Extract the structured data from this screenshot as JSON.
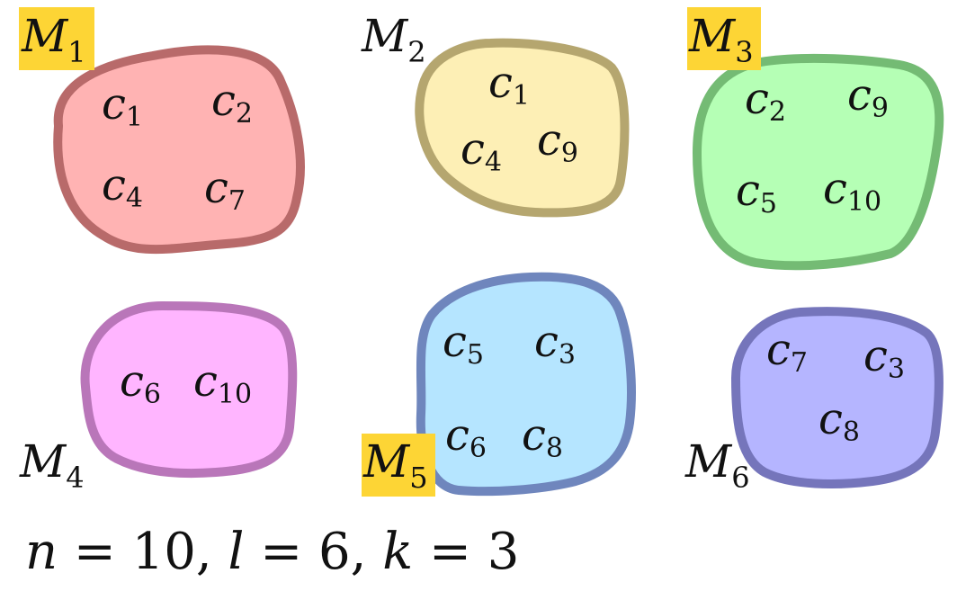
{
  "sets": [
    {
      "label": "M",
      "sub": "1",
      "highlighted": true,
      "fill": "#ffb3b3",
      "stroke": "#b86a6a",
      "elements": [
        {
          "base": "c",
          "sub": "1"
        },
        {
          "base": "c",
          "sub": "2"
        },
        {
          "base": "c",
          "sub": "4"
        },
        {
          "base": "c",
          "sub": "7"
        }
      ]
    },
    {
      "label": "M",
      "sub": "2",
      "highlighted": false,
      "fill": "#fdefb5",
      "stroke": "#b5a66f",
      "elements": [
        {
          "base": "c",
          "sub": "1"
        },
        {
          "base": "c",
          "sub": "4"
        },
        {
          "base": "c",
          "sub": "9"
        }
      ]
    },
    {
      "label": "M",
      "sub": "3",
      "highlighted": true,
      "fill": "#b5ffb5",
      "stroke": "#74bb74",
      "elements": [
        {
          "base": "c",
          "sub": "2"
        },
        {
          "base": "c",
          "sub": "9"
        },
        {
          "base": "c",
          "sub": "5"
        },
        {
          "base": "c",
          "sub": "10"
        }
      ]
    },
    {
      "label": "M",
      "sub": "4",
      "highlighted": false,
      "fill": "#ffb5ff",
      "stroke": "#b976b9",
      "elements": [
        {
          "base": "c",
          "sub": "6"
        },
        {
          "base": "c",
          "sub": "10"
        }
      ]
    },
    {
      "label": "M",
      "sub": "5",
      "highlighted": true,
      "fill": "#b5e5ff",
      "stroke": "#6f86bd",
      "elements": [
        {
          "base": "c",
          "sub": "5"
        },
        {
          "base": "c",
          "sub": "3"
        },
        {
          "base": "c",
          "sub": "6"
        },
        {
          "base": "c",
          "sub": "8"
        }
      ]
    },
    {
      "label": "M",
      "sub": "6",
      "highlighted": false,
      "fill": "#b5b5ff",
      "stroke": "#7575bb",
      "elements": [
        {
          "base": "c",
          "sub": "7"
        },
        {
          "base": "c",
          "sub": "3"
        },
        {
          "base": "c",
          "sub": "8"
        }
      ]
    }
  ],
  "highlight_color": "#fdd535",
  "formula": {
    "n_var": "n",
    "n_val": "10",
    "l_var": "l",
    "l_val": "6",
    "k_var": "k",
    "k_val": "3",
    "equals": "=",
    "separator": ","
  }
}
